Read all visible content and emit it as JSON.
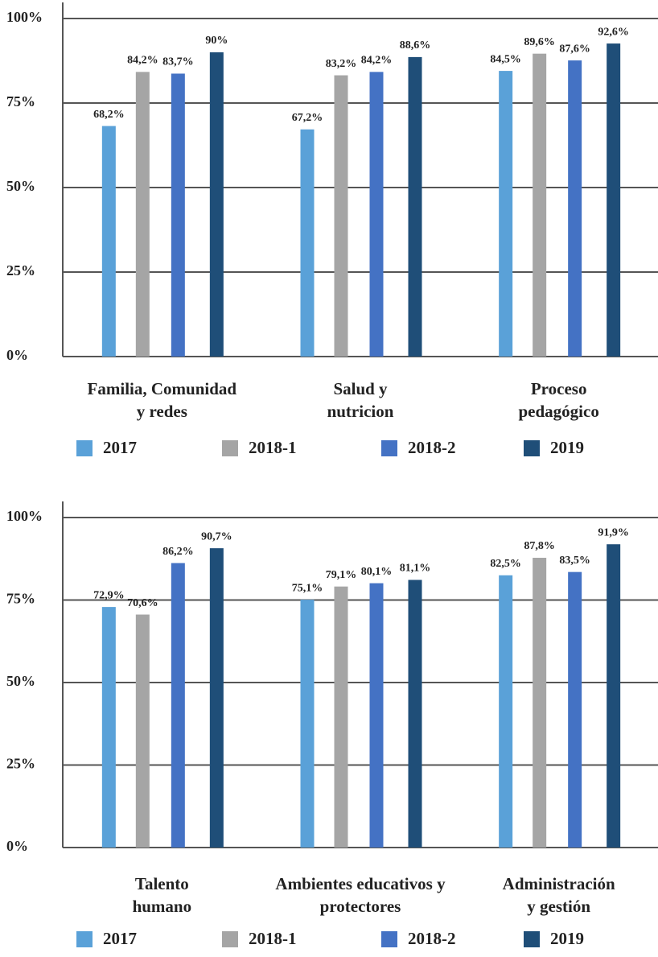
{
  "chart_data": [
    {
      "type": "bar",
      "categories": [
        [
          "Familia, Comunidad",
          "y redes"
        ],
        [
          "Salud y",
          "nutricion"
        ],
        [
          "Proceso",
          "pedagógico"
        ]
      ],
      "series": [
        {
          "name": "2017",
          "color": "#5aa1d8",
          "values": [
            68.2,
            67.2,
            84.5
          ],
          "value_labels": [
            "68,2%",
            "67,2%",
            "84,5%"
          ]
        },
        {
          "name": "2018-1",
          "color": "#a5a5a5",
          "values": [
            84.2,
            83.2,
            89.6
          ],
          "value_labels": [
            "84,2%",
            "83,2%",
            "89,6%"
          ]
        },
        {
          "name": "2018-2",
          "color": "#4472c4",
          "values": [
            83.7,
            84.2,
            87.6
          ],
          "value_labels": [
            "83,7%",
            "84,2%",
            "87,6%"
          ]
        },
        {
          "name": "2019",
          "color": "#1f4e78",
          "values": [
            90,
            88.6,
            92.6
          ],
          "value_labels": [
            "90%",
            "88,6%",
            "92,6%"
          ]
        }
      ],
      "ylim": [
        0,
        100
      ],
      "yticks": [
        {
          "value": 0,
          "label": "0%"
        },
        {
          "value": 25,
          "label": "25%"
        },
        {
          "value": 50,
          "label": "50%"
        },
        {
          "value": 75,
          "label": "75%"
        },
        {
          "value": 100,
          "label": "100%"
        }
      ],
      "grid": true
    },
    {
      "type": "bar",
      "categories": [
        [
          "Talento",
          "humano"
        ],
        [
          "Ambientes educativos y",
          "protectores"
        ],
        [
          "Administración",
          "y gestión"
        ]
      ],
      "series": [
        {
          "name": "2017",
          "color": "#5aa1d8",
          "values": [
            72.9,
            75.1,
            82.5
          ],
          "value_labels": [
            "72,9%",
            "75,1%",
            "82,5%"
          ]
        },
        {
          "name": "2018-1",
          "color": "#a5a5a5",
          "values": [
            70.6,
            79.1,
            87.8
          ],
          "value_labels": [
            "70,6%",
            "79,1%",
            "87,8%"
          ]
        },
        {
          "name": "2018-2",
          "color": "#4472c4",
          "values": [
            86.2,
            80.1,
            83.5
          ],
          "value_labels": [
            "86,2%",
            "80,1%",
            "83,5%"
          ]
        },
        {
          "name": "2019",
          "color": "#1f4e78",
          "values": [
            90.7,
            81.1,
            91.9
          ],
          "value_labels": [
            "90,7%",
            "81,1%",
            "91,9%"
          ]
        }
      ],
      "ylim": [
        0,
        100
      ],
      "yticks": [
        {
          "value": 0,
          "label": "0%"
        },
        {
          "value": 25,
          "label": "25%"
        },
        {
          "value": 50,
          "label": "50%"
        },
        {
          "value": 75,
          "label": "75%"
        },
        {
          "value": 100,
          "label": "100%"
        }
      ],
      "grid": true
    }
  ]
}
